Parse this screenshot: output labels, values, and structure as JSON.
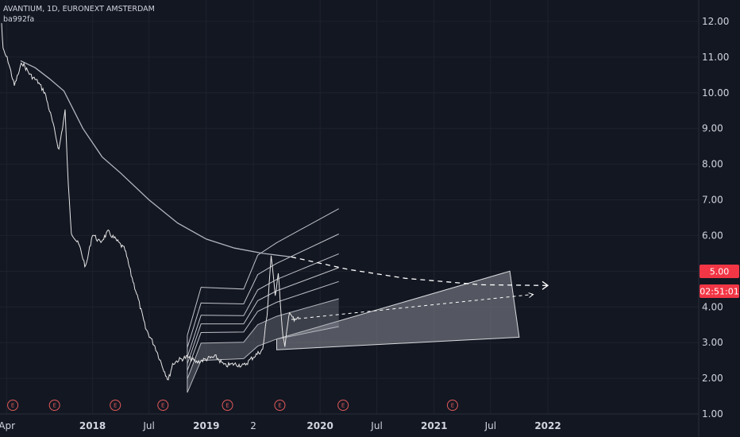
{
  "header": {
    "title": "AVANTIUM, 1D, EURONEXT AMSTERDAM",
    "script_tag": "ba992fa"
  },
  "price_badge": {
    "value": "5.00",
    "countdown": "02:51:01",
    "color": "#f23645"
  },
  "earnings_marker": {
    "label": "E",
    "color": "#e05a5a"
  },
  "colors": {
    "background": "#131722",
    "price": "#e6e6e6",
    "ma": "#b2b5be",
    "channel": "#c0c2c8",
    "fib_fill": "#8a8d95"
  },
  "chart_data": {
    "type": "line",
    "ylim": [
      1.0,
      12.6
    ],
    "xlim": [
      "2017-03-10",
      "2023-04-30"
    ],
    "y_ticks": [
      12,
      11,
      10,
      9,
      8,
      7,
      6,
      5,
      4,
      3,
      2,
      1
    ],
    "y_tick_labels": [
      "12.00",
      "11.00",
      "10.00",
      "9.00",
      "8.00",
      "7.00",
      "6.00",
      "5.00",
      "4.00",
      "3.00",
      "2.00",
      "1.00"
    ],
    "x_ticks": [
      {
        "label": "Apr",
        "date": "2017-04-01",
        "bold": false
      },
      {
        "label": "2018",
        "date": "2018-01-01",
        "bold": true
      },
      {
        "label": "Jul",
        "date": "2018-07-01",
        "bold": false
      },
      {
        "label": "2019",
        "date": "2019-01-01",
        "bold": true
      },
      {
        "label": "2",
        "date": "2019-06-01",
        "bold": false
      },
      {
        "label": "2020",
        "date": "2020-01-01",
        "bold": true
      },
      {
        "label": "Jul",
        "date": "2020-07-01",
        "bold": false
      },
      {
        "label": "2021",
        "date": "2021-01-01",
        "bold": true
      },
      {
        "label": "Jul",
        "date": "2021-07-01",
        "bold": false
      },
      {
        "label": "2022",
        "date": "2022-01-01",
        "bold": true
      }
    ],
    "earnings_dates": [
      "2017-04-20",
      "2017-09-01",
      "2018-03-15",
      "2018-08-15",
      "2019-03-10",
      "2019-08-25",
      "2020-03-15",
      "2021-03-01"
    ],
    "price_series": [
      [
        "2017-03-15",
        11.95
      ],
      [
        "2017-03-20",
        11.2
      ],
      [
        "2017-04-05",
        10.9
      ],
      [
        "2017-04-25",
        10.2
      ],
      [
        "2017-05-20",
        10.85
      ],
      [
        "2017-06-15",
        10.5
      ],
      [
        "2017-07-10",
        10.3
      ],
      [
        "2017-08-01",
        10.0
      ],
      [
        "2017-08-25",
        9.2
      ],
      [
        "2017-09-15",
        8.4
      ],
      [
        "2017-10-05",
        9.5
      ],
      [
        "2017-10-15",
        7.4
      ],
      [
        "2017-10-25",
        6.1
      ],
      [
        "2017-11-20",
        5.7
      ],
      [
        "2017-12-10",
        5.1
      ],
      [
        "2018-01-01",
        6.05
      ],
      [
        "2018-01-25",
        5.8
      ],
      [
        "2018-02-20",
        6.1
      ],
      [
        "2018-03-20",
        5.85
      ],
      [
        "2018-04-15",
        5.6
      ],
      [
        "2018-05-05",
        4.9
      ],
      [
        "2018-05-25",
        4.3
      ],
      [
        "2018-06-20",
        3.4
      ],
      [
        "2018-07-20",
        2.9
      ],
      [
        "2018-08-15",
        2.3
      ],
      [
        "2018-09-01",
        1.95
      ],
      [
        "2018-09-15",
        2.4
      ],
      [
        "2018-10-01",
        2.5
      ],
      [
        "2018-11-01",
        2.6
      ],
      [
        "2018-12-01",
        2.45
      ],
      [
        "2019-01-05",
        2.55
      ],
      [
        "2019-02-01",
        2.6
      ],
      [
        "2019-03-01",
        2.35
      ],
      [
        "2019-04-01",
        2.4
      ],
      [
        "2019-05-01",
        2.35
      ],
      [
        "2019-06-01",
        2.6
      ],
      [
        "2019-07-01",
        2.8
      ],
      [
        "2019-07-15",
        3.8
      ],
      [
        "2019-07-28",
        5.45
      ],
      [
        "2019-08-10",
        4.3
      ],
      [
        "2019-08-20",
        5.0
      ],
      [
        "2019-09-01",
        3.4
      ],
      [
        "2019-09-10",
        2.85
      ],
      [
        "2019-09-25",
        3.9
      ],
      [
        "2019-10-10",
        3.6
      ],
      [
        "2019-10-25",
        3.7
      ]
    ],
    "ma_series": [
      [
        "2017-05-15",
        10.9
      ],
      [
        "2017-07-01",
        10.7
      ],
      [
        "2017-08-15",
        10.4
      ],
      [
        "2017-10-01",
        10.05
      ],
      [
        "2017-12-01",
        9.0
      ],
      [
        "2018-02-01",
        8.2
      ],
      [
        "2018-04-01",
        7.75
      ],
      [
        "2018-07-01",
        7.0
      ],
      [
        "2018-10-01",
        6.35
      ],
      [
        "2019-01-01",
        5.9
      ],
      [
        "2019-04-01",
        5.65
      ],
      [
        "2019-07-01",
        5.5
      ],
      [
        "2019-10-01",
        5.4
      ]
    ],
    "ma_projection": [
      [
        "2019-10-01",
        5.4
      ],
      [
        "2020-04-01",
        5.05
      ],
      [
        "2020-10-01",
        4.8
      ],
      [
        "2021-06-01",
        4.62
      ],
      [
        "2022-01-01",
        4.6
      ]
    ],
    "channel_upper": [
      [
        "2018-11-01",
        3.2
      ],
      [
        "2018-12-15",
        4.55
      ],
      [
        "2019-05-01",
        4.5
      ],
      [
        "2019-06-15",
        5.45
      ],
      [
        "2019-08-15",
        5.8
      ],
      [
        "2020-03-01",
        6.75
      ]
    ],
    "channel_lower": [
      [
        "2018-11-01",
        1.6
      ],
      [
        "2018-12-15",
        2.5
      ],
      [
        "2019-05-01",
        2.55
      ],
      [
        "2019-06-15",
        2.9
      ],
      [
        "2019-08-15",
        3.1
      ],
      [
        "2020-03-01",
        3.45
      ]
    ],
    "fib_levels": [
      0,
      0.236,
      0.382,
      0.5,
      0.618,
      0.786,
      1
    ],
    "projection_fan": [
      [
        "2019-08-15",
        3.1
      ],
      [
        "2021-09-01",
        5.0
      ],
      [
        "2021-10-01",
        3.15
      ],
      [
        "2019-08-15",
        2.8
      ]
    ],
    "trend_projection": [
      [
        "2019-10-01",
        3.65
      ],
      [
        "2021-11-15",
        4.35
      ]
    ]
  }
}
